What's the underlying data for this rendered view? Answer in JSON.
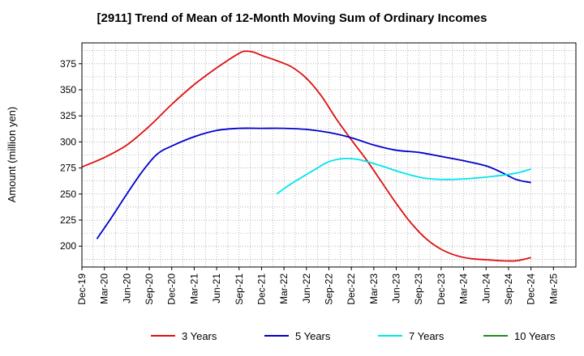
{
  "chart_data": {
    "type": "line",
    "title": "[2911]  Trend of Mean of 12-Month Moving Sum of Ordinary Incomes",
    "ylabel": "Amount (million yen)",
    "xlabel": "",
    "ylim": [
      180,
      395
    ],
    "yticks": [
      200,
      225,
      250,
      275,
      300,
      325,
      350,
      375
    ],
    "xlim": [
      0,
      66
    ],
    "xticks": [
      {
        "i": 0,
        "label": "Dec-19"
      },
      {
        "i": 3,
        "label": "Mar-20"
      },
      {
        "i": 6,
        "label": "Jun-20"
      },
      {
        "i": 9,
        "label": "Sep-20"
      },
      {
        "i": 12,
        "label": "Dec-20"
      },
      {
        "i": 15,
        "label": "Mar-21"
      },
      {
        "i": 18,
        "label": "Jun-21"
      },
      {
        "i": 21,
        "label": "Sep-21"
      },
      {
        "i": 24,
        "label": "Dec-21"
      },
      {
        "i": 27,
        "label": "Mar-22"
      },
      {
        "i": 30,
        "label": "Jun-22"
      },
      {
        "i": 33,
        "label": "Sep-22"
      },
      {
        "i": 36,
        "label": "Dec-22"
      },
      {
        "i": 39,
        "label": "Mar-23"
      },
      {
        "i": 42,
        "label": "Jun-23"
      },
      {
        "i": 45,
        "label": "Sep-23"
      },
      {
        "i": 48,
        "label": "Dec-23"
      },
      {
        "i": 51,
        "label": "Mar-24"
      },
      {
        "i": 54,
        "label": "Jun-24"
      },
      {
        "i": 57,
        "label": "Sep-24"
      },
      {
        "i": 60,
        "label": "Dec-24"
      },
      {
        "i": 63,
        "label": "Mar-25"
      }
    ],
    "grid": true,
    "legend_position": "bottom",
    "series": [
      {
        "name": "3 Years",
        "color": "#dd1111",
        "points": [
          [
            0,
            276
          ],
          [
            3,
            285
          ],
          [
            6,
            297
          ],
          [
            9,
            315
          ],
          [
            12,
            336
          ],
          [
            15,
            355
          ],
          [
            18,
            371
          ],
          [
            21,
            385
          ],
          [
            22,
            387
          ],
          [
            23,
            386
          ],
          [
            24,
            383
          ],
          [
            26,
            378
          ],
          [
            28,
            372
          ],
          [
            30,
            361
          ],
          [
            32,
            344
          ],
          [
            34,
            322
          ],
          [
            36,
            302
          ],
          [
            38,
            283
          ],
          [
            40,
            262
          ],
          [
            42,
            241
          ],
          [
            44,
            222
          ],
          [
            46,
            207
          ],
          [
            48,
            197
          ],
          [
            50,
            191
          ],
          [
            52,
            188
          ],
          [
            54,
            187
          ],
          [
            56,
            186
          ],
          [
            58,
            186
          ],
          [
            60,
            189
          ]
        ]
      },
      {
        "name": "5 Years",
        "color": "#0000cc",
        "points": [
          [
            2,
            207
          ],
          [
            4,
            228
          ],
          [
            6,
            250
          ],
          [
            8,
            271
          ],
          [
            10,
            288
          ],
          [
            12,
            296
          ],
          [
            15,
            305
          ],
          [
            18,
            311
          ],
          [
            21,
            313
          ],
          [
            24,
            313
          ],
          [
            27,
            313
          ],
          [
            30,
            312
          ],
          [
            33,
            309
          ],
          [
            36,
            304
          ],
          [
            39,
            297
          ],
          [
            42,
            292
          ],
          [
            45,
            290
          ],
          [
            48,
            286
          ],
          [
            51,
            282
          ],
          [
            54,
            277
          ],
          [
            56,
            271
          ],
          [
            58,
            264
          ],
          [
            60,
            261
          ]
        ]
      },
      {
        "name": "7 Years",
        "color": "#00e5ee",
        "points": [
          [
            26,
            250
          ],
          [
            28,
            260
          ],
          [
            31,
            273
          ],
          [
            33,
            281
          ],
          [
            35,
            284
          ],
          [
            37,
            283
          ],
          [
            40,
            277
          ],
          [
            43,
            270
          ],
          [
            46,
            265
          ],
          [
            49,
            264
          ],
          [
            52,
            265
          ],
          [
            55,
            267
          ],
          [
            58,
            270
          ],
          [
            60,
            274
          ]
        ]
      },
      {
        "name": "10 Years",
        "color": "#228b22",
        "points": []
      }
    ]
  }
}
